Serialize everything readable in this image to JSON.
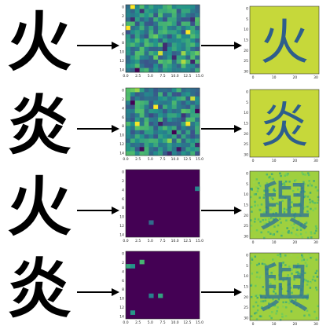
{
  "rows": [
    {
      "character": "火",
      "latent": {
        "kind": "dense",
        "x_ticks": [
          "0.0",
          "2.5",
          "5.0",
          "7.5",
          "10.0",
          "12.5",
          "15.0"
        ],
        "y_ticks": [
          "0",
          "2",
          "4",
          "6",
          "8",
          "10",
          "12",
          "14"
        ],
        "seed": 7
      },
      "output": {
        "background": "#c6d83a",
        "x_ticks": [
          "0",
          "10",
          "20",
          "30"
        ],
        "y_ticks": [
          "0",
          "5",
          "10",
          "15",
          "20",
          "25",
          "30"
        ]
      }
    },
    {
      "character": "炎",
      "latent": {
        "kind": "dense",
        "x_ticks": [
          "0.0",
          "2.5",
          "5.0",
          "7.5",
          "10.0",
          "12.5",
          "15.0"
        ],
        "y_ticks": [
          "0",
          "2",
          "4",
          "6",
          "8",
          "10",
          "12",
          "14"
        ],
        "seed": 19
      },
      "output": {
        "background": "#c6d83a",
        "x_ticks": [
          "0",
          "10",
          "20",
          "30"
        ],
        "y_ticks": [
          "0",
          "5",
          "10",
          "15",
          "20",
          "25",
          "30"
        ]
      }
    },
    {
      "character": "火",
      "latent": {
        "kind": "sparse",
        "x_ticks": [
          "0.0",
          "2.5",
          "5.0",
          "7.5",
          "10.0",
          "12.5",
          "15.0"
        ],
        "y_ticks": [
          "0",
          "2",
          "4",
          "6",
          "8",
          "10",
          "12",
          "14"
        ],
        "seed": 31
      },
      "output": {
        "background": "#9fd03f",
        "overlay_character": "與",
        "x_ticks": [
          "0",
          "10",
          "20",
          "30"
        ],
        "y_ticks": [
          "0",
          "5",
          "10",
          "15",
          "20",
          "25",
          "30"
        ]
      }
    },
    {
      "character": "炎",
      "latent": {
        "kind": "sparse",
        "x_ticks": [
          "0.0",
          "2.5",
          "5.0",
          "7.5",
          "10.0",
          "12.5",
          "15.0"
        ],
        "y_ticks": [
          "0",
          "2",
          "4",
          "6",
          "8",
          "10",
          "12",
          "14"
        ],
        "seed": 43
      },
      "output": {
        "background": "#9fd03f",
        "overlay_character": "與",
        "x_ticks": [
          "0",
          "10",
          "20",
          "30"
        ],
        "y_ticks": [
          "0",
          "5",
          "10",
          "15",
          "20",
          "25",
          "30"
        ]
      }
    }
  ],
  "colors": {
    "viridis": [
      "#440154",
      "#3b528b",
      "#21918c",
      "#5ec962",
      "#fde725"
    ],
    "sparse_bg": "#440154",
    "arrow": "#000000",
    "character": "#000000"
  }
}
